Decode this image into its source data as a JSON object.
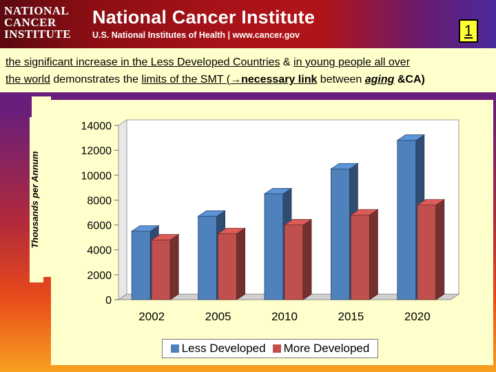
{
  "header": {
    "logo_lines": [
      "NATIONAL",
      "CANCER",
      "INSTITUTE"
    ],
    "title": "National Cancer Institute",
    "subtitle": "U.S. National Institutes of Health  |  www.cancer.gov",
    "slide_number": "1"
  },
  "headline": {
    "p1": "the significant increase  in the Less Developed Countries",
    "p2": " & ",
    "p3": "in young people all over",
    "p4": "the world",
    "p5": " demonstrates the ",
    "p6": "limits of the SMT (",
    "arrow": "→",
    "p7": "necessary link",
    "p8": " between ",
    "p9": "aging",
    "p10": " &CA)"
  },
  "colors": {
    "less_developed": "#4f81bd",
    "more_developed": "#c0504d",
    "panel_bg": "#ffffcc",
    "slide_number_bg": "#ffff33"
  },
  "chart_data": {
    "type": "bar",
    "title": "",
    "xlabel": "",
    "ylabel": "Thousands per Annum",
    "categories": [
      "2002",
      "2005",
      "2010",
      "2015",
      "2020"
    ],
    "series": [
      {
        "name": "Less Developed",
        "values": [
          5500,
          6700,
          8500,
          10500,
          12800
        ]
      },
      {
        "name": "More Developed",
        "values": [
          4800,
          5300,
          6000,
          6800,
          7600
        ]
      }
    ],
    "ylim": [
      0,
      14000
    ],
    "yticks": [
      "0",
      "2000",
      "4000",
      "6000",
      "8000",
      "10000",
      "12000",
      "14000"
    ],
    "grid": false,
    "legend_position": "bottom",
    "style": "3d"
  }
}
